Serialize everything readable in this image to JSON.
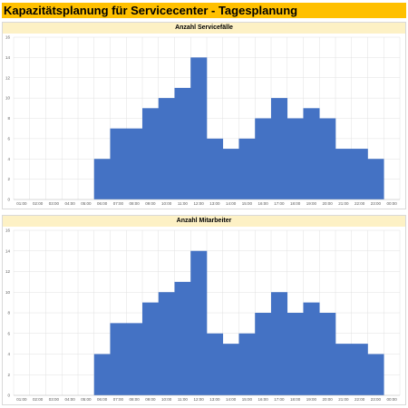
{
  "title": "Kapazitätsplanung für Servicecenter - Tagesplanung",
  "colors": {
    "title_bg": "#ffc000",
    "chart_header_bg": "#fdf1c5",
    "bar": "#4472c4",
    "grid": "#e0e0e0"
  },
  "chart_data": [
    {
      "type": "area",
      "title": "Anzahl Servicefälle",
      "categories": [
        "01:00",
        "02:00",
        "03:00",
        "04:00",
        "05:00",
        "06:00",
        "07:00",
        "08:00",
        "09:00",
        "10:00",
        "11:00",
        "12:00",
        "13:00",
        "14:00",
        "15:00",
        "16:00",
        "17:00",
        "18:00",
        "19:00",
        "20:00",
        "21:00",
        "22:00",
        "23:00",
        "00:00"
      ],
      "values": [
        0,
        0,
        0,
        0,
        0,
        4,
        7,
        7,
        9,
        10,
        11,
        14,
        6,
        5,
        6,
        8,
        10,
        8,
        9,
        8,
        5,
        5,
        4,
        0
      ],
      "ylim": [
        0,
        16
      ],
      "yticks": [
        0,
        2,
        4,
        6,
        8,
        10,
        12,
        14,
        16
      ],
      "grid": true
    },
    {
      "type": "area",
      "title": "Anzahl Mitarbeiter",
      "categories": [
        "01:00",
        "02:00",
        "03:00",
        "04:00",
        "05:00",
        "06:00",
        "07:00",
        "08:00",
        "09:00",
        "10:00",
        "11:00",
        "12:00",
        "13:00",
        "14:00",
        "15:00",
        "16:00",
        "17:00",
        "18:00",
        "19:00",
        "20:00",
        "21:00",
        "22:00",
        "23:00",
        "00:00"
      ],
      "values": [
        0,
        0,
        0,
        0,
        0,
        4,
        7,
        7,
        9,
        10,
        11,
        14,
        6,
        5,
        6,
        8,
        10,
        8,
        9,
        8,
        5,
        5,
        4,
        0
      ],
      "ylim": [
        0,
        16
      ],
      "yticks": [
        0,
        2,
        4,
        6,
        8,
        10,
        12,
        14,
        16
      ],
      "grid": true
    }
  ]
}
